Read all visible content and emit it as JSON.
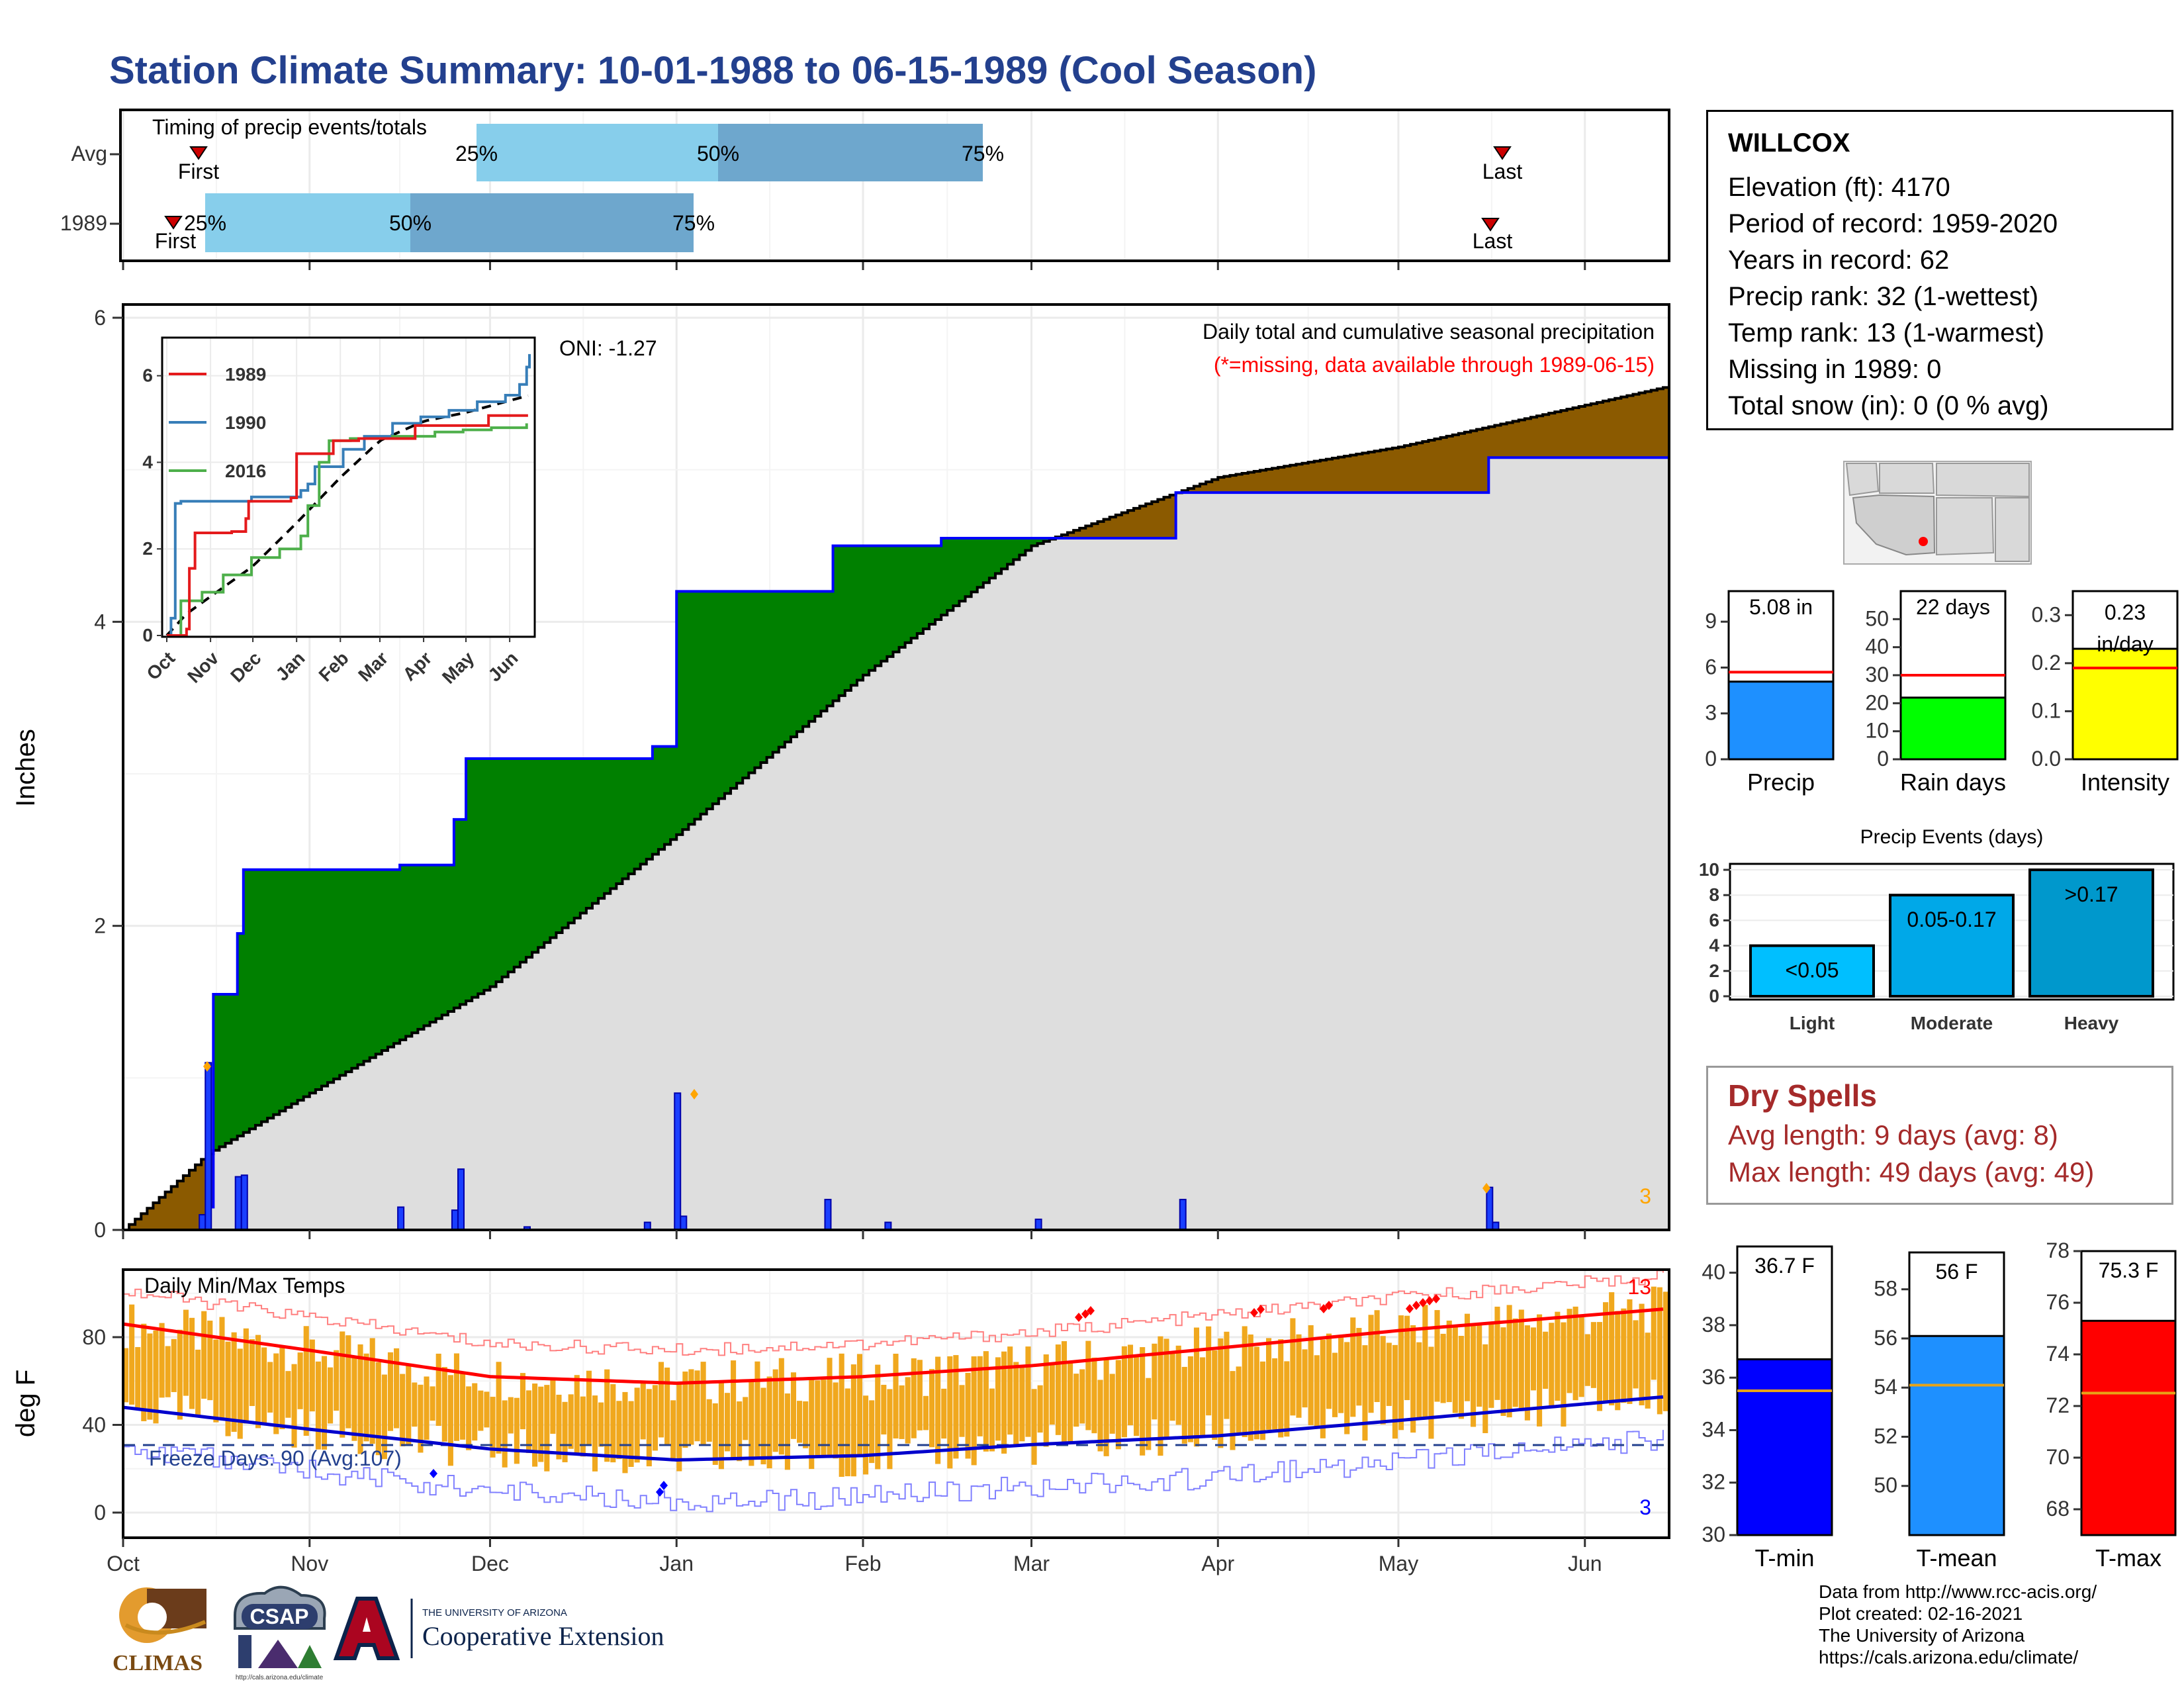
{
  "title": "Station Climate Summary: 10-01-1988 to 06-15-1989 (Cool Season)",
  "months": [
    "Oct",
    "Nov",
    "Dec",
    "Jan",
    "Feb",
    "Mar",
    "Apr",
    "May",
    "Jun"
  ],
  "timing": {
    "label": "Timing of precip events/totals",
    "rows": [
      {
        "name": "Avg",
        "first_marker": "First",
        "last_marker": "Last",
        "q25": "25%",
        "q50": "50%",
        "q75": "75%"
      },
      {
        "name": "1989",
        "first_marker": "First",
        "last_marker": "Last",
        "q25": "25%",
        "q50": "50%",
        "q75": "75%"
      }
    ]
  },
  "precip_panel": {
    "ylabel": "Inches",
    "yticks": [
      "0",
      "2",
      "4",
      "6"
    ],
    "oni": "ONI: -1.27",
    "caption1": "Daily total and cumulative seasonal precipitation",
    "caption2": "(*=missing, data available through 1989-06-15)",
    "count_label": "3"
  },
  "inset": {
    "yticks": [
      "0",
      "2",
      "4",
      "6"
    ],
    "xticks": [
      "Oct",
      "Nov",
      "Dec",
      "Jan",
      "Feb",
      "Mar",
      "Apr",
      "May",
      "Jun"
    ],
    "legend": [
      {
        "label": "1989",
        "color": "#e41a1c"
      },
      {
        "label": "1990",
        "color": "#377eb8"
      },
      {
        "label": "2016",
        "color": "#4daf4a"
      }
    ]
  },
  "temp_panel": {
    "ylabel": "deg F",
    "title": "Daily Min/Max Temps",
    "yticks": [
      "0",
      "40",
      "80"
    ],
    "freeze": "Freeze Days: 90 (Avg:107)",
    "top_count": "13",
    "bottom_count": "3"
  },
  "station": {
    "name": "WILLCOX",
    "lines": [
      "Elevation (ft): 4170",
      "Period of record: 1959-2020",
      "Years in record: 62",
      "Precip rank: 32 (1-wettest)",
      "Temp rank: 13 (1-warmest)",
      "Missing in 1989: 0",
      "Total snow (in): 0 (0 % avg)"
    ]
  },
  "summary_bars": [
    {
      "name": "Precip",
      "value_label": "5.08 in",
      "value": 5.08,
      "avg": 5.7,
      "max": 11,
      "ticks": [
        "0",
        "3",
        "6",
        "9"
      ],
      "tickvals": [
        0,
        3,
        6,
        9
      ],
      "color": "#1e90ff"
    },
    {
      "name": "Rain days",
      "value_label": "22 days",
      "value": 22,
      "avg": 30,
      "max": 60,
      "ticks": [
        "0",
        "10",
        "20",
        "30",
        "40",
        "50"
      ],
      "tickvals": [
        0,
        10,
        20,
        30,
        40,
        50
      ],
      "color": "#00ff00"
    },
    {
      "name": "Intensity",
      "value_label": "0.23 in/day",
      "value": 0.23,
      "avg": 0.19,
      "max": 0.35,
      "ticks": [
        "0.0",
        "0.1",
        "0.2",
        "0.3"
      ],
      "tickvals": [
        0,
        0.1,
        0.2,
        0.3
      ],
      "color": "#ffff00"
    }
  ],
  "precip_events": {
    "title": "Precip Events (days)",
    "yticks": [
      "0",
      "2",
      "4",
      "6",
      "8",
      "10"
    ],
    "categories": [
      "Light",
      "Moderate",
      "Heavy"
    ],
    "labels": [
      "<0.05",
      "0.05-0.17",
      ">0.17"
    ],
    "values": [
      4,
      8,
      10
    ],
    "colors": [
      "#00bfff",
      "#00a8e8",
      "#0098cc"
    ]
  },
  "dry_spells": {
    "title": "Dry Spells",
    "avg": "Avg length: 9 days (avg: 8)",
    "max": "Max length: 49 days (avg: 49)"
  },
  "temp_bars": [
    {
      "name": "T-min",
      "value_label": "36.7 F",
      "value": 36.7,
      "avg": 35.5,
      "min": 30,
      "max": 41,
      "ticks": [
        "30",
        "32",
        "34",
        "36",
        "38",
        "40"
      ],
      "tickvals": [
        30,
        32,
        34,
        36,
        38,
        40
      ],
      "color": "#0000ff"
    },
    {
      "name": "T-mean",
      "value_label": "56 F",
      "value": 56.1,
      "avg": 54.1,
      "min": 48,
      "max": 59.5,
      "ticks": [
        "50",
        "52",
        "54",
        "56",
        "58"
      ],
      "tickvals": [
        50,
        52,
        54,
        56,
        58
      ],
      "color": "#1e90ff"
    },
    {
      "name": "T-max",
      "value_label": "75.3 F",
      "value": 75.3,
      "avg": 72.5,
      "min": 67,
      "max": 78,
      "ticks": [
        "68",
        "70",
        "72",
        "74",
        "76",
        "78"
      ],
      "tickvals": [
        68,
        70,
        72,
        74,
        76,
        78
      ],
      "color": "#ff0000"
    }
  ],
  "credits": [
    "Data from http://www.rcc-acis.org/",
    "Plot created: 02-16-2021",
    "The University of Arizona",
    "https://cals.arizona.edu/climate/"
  ],
  "logos": {
    "climas": "CLIMAS",
    "csap": "CSAP",
    "csap_url": "http://cals.arizona.edu/climate",
    "ua_small": "THE UNIVERSITY OF ARIZONA",
    "ua_big": "Cooperative Extension"
  },
  "chart_data": [
    {
      "type": "area",
      "title": "Daily total and cumulative seasonal precipitation",
      "ylabel": "Inches",
      "ylim": [
        0,
        6
      ],
      "x_range": [
        "1988-10-01",
        "1989-06-15"
      ],
      "series": [
        {
          "name": "1989",
          "x": [
            "1988-10-01",
            "1988-10-15",
            "1988-10-16",
            "1988-10-20",
            "1988-10-21",
            "1988-11-16",
            "1988-11-25",
            "1988-11-27",
            "1988-12-28",
            "1989-01-01",
            "1989-01-27",
            "1989-02-14",
            "1989-03-01",
            "1989-03-25",
            "1989-05-16",
            "1989-06-15"
          ],
          "y": [
            0,
            0.15,
            1.55,
            1.95,
            2.37,
            2.4,
            2.7,
            3.1,
            3.18,
            4.2,
            4.5,
            4.55,
            4.55,
            4.85,
            5.08,
            5.08
          ]
        },
        {
          "name": "",
          "x": [
            "1988-10-01",
            "1988-10-15",
            "1988-11-01",
            "1988-12-01",
            "1989-01-01",
            "1989-02-01",
            "1989-03-01",
            "1989-04-01",
            "1989-05-01",
            "1989-06-15"
          ],
          "y": [
            0,
            0.5,
            0.9,
            1.6,
            2.6,
            3.65,
            4.5,
            4.95,
            5.15,
            5.55
          ]
        }
      ],
      "daily": {
        "x": [
          "1988-10-14",
          "1988-10-15",
          "1988-10-20",
          "1988-10-21",
          "1988-11-16",
          "1988-11-25",
          "1988-11-26",
          "1988-12-07",
          "1988-12-27",
          "1989-01-01",
          "1989-01-02",
          "1989-01-26",
          "1989-02-05",
          "1989-03-02",
          "1989-03-26",
          "1989-05-16",
          "1989-05-17"
        ],
        "y": [
          0.1,
          1.1,
          0.35,
          0.36,
          0.15,
          0.13,
          0.4,
          0.02,
          0.05,
          0.9,
          0.09,
          0.2,
          0.05,
          0.07,
          0.2,
          0.28,
          0.05
        ]
      }
    },
    {
      "type": "line",
      "title": "Daily Min/Max Temps",
      "ylabel": "deg F",
      "ylim": [
        -10,
        105
      ],
      "x_range": [
        "1988-10-01",
        "1989-06-15"
      ],
      "series": [
        {
          "name": "",
          "x": [
            "1988-10-01",
            "1988-11-01",
            "1988-12-01",
            "1989-01-01",
            "1989-02-01",
            "1989-03-01",
            "1989-04-01",
            "1989-05-01",
            "1989-06-15"
          ],
          "y": [
            86,
            74,
            62,
            59,
            62,
            67,
            75,
            83,
            93
          ]
        },
        {
          "name": "",
          "x": [
            "1988-10-01",
            "1988-11-01",
            "1988-12-01",
            "1989-01-01",
            "1989-02-01",
            "1989-03-01",
            "1989-04-01",
            "1989-05-01",
            "1989-06-15"
          ],
          "y": [
            48,
            38,
            29,
            24,
            26,
            31,
            35,
            42,
            53
          ]
        }
      ]
    }
  ]
}
